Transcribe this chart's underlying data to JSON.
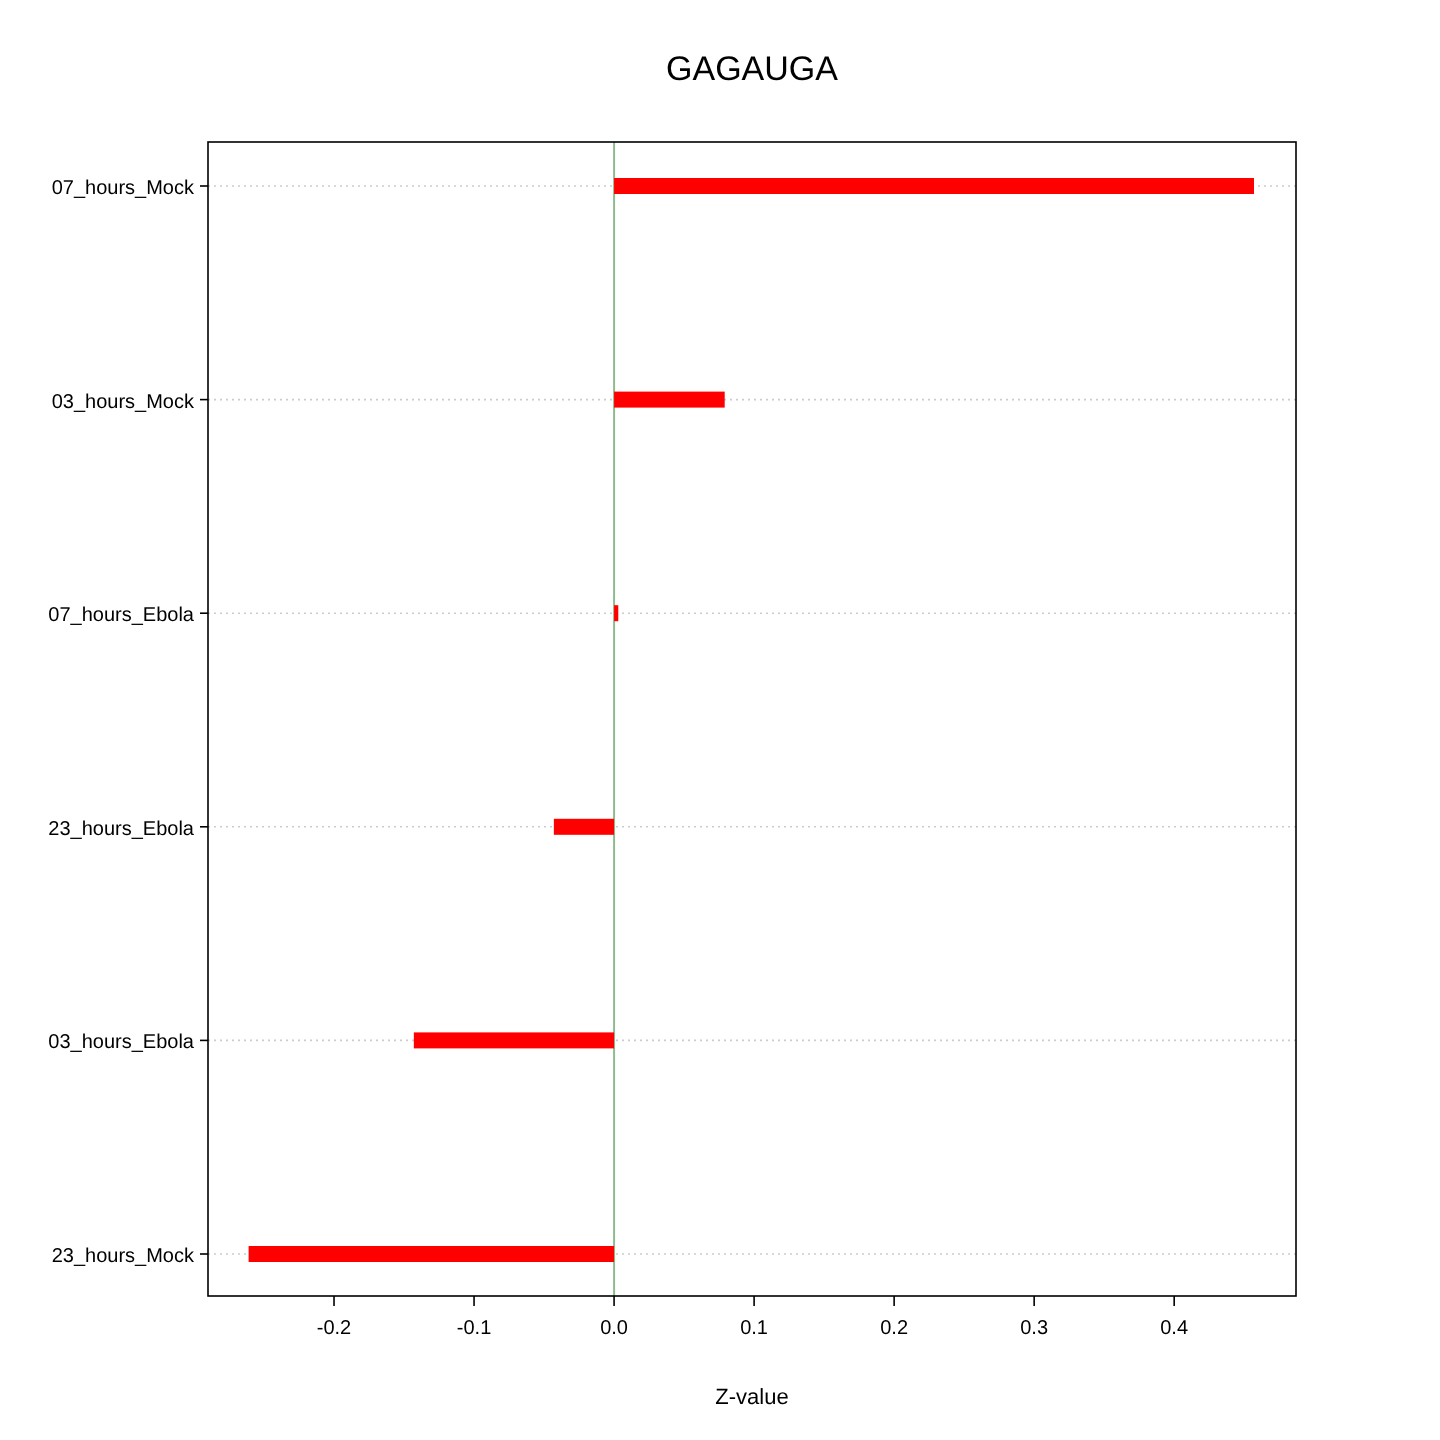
{
  "chart_data": {
    "type": "bar",
    "orientation": "horizontal",
    "title": "GAGAUGA",
    "xlabel": "Z-value",
    "categories": [
      "07_hours_Mock",
      "03_hours_Mock",
      "07_hours_Ebola",
      "23_hours_Ebola",
      "03_hours_Ebola",
      "23_hours_Mock"
    ],
    "values": [
      0.457,
      0.079,
      0.003,
      -0.043,
      -0.143,
      -0.261
    ],
    "color": "#ff0000",
    "xlim": [
      -0.29,
      0.487
    ],
    "xticks": [
      -0.2,
      -0.1,
      {
        "value": 0,
        "label": "0.0"
      },
      0.1,
      0.2,
      0.3,
      0.4
    ],
    "grid": "y",
    "ref_lines": [
      {
        "axis": "x",
        "value": 0,
        "color": "#8fbc8f"
      }
    ]
  }
}
